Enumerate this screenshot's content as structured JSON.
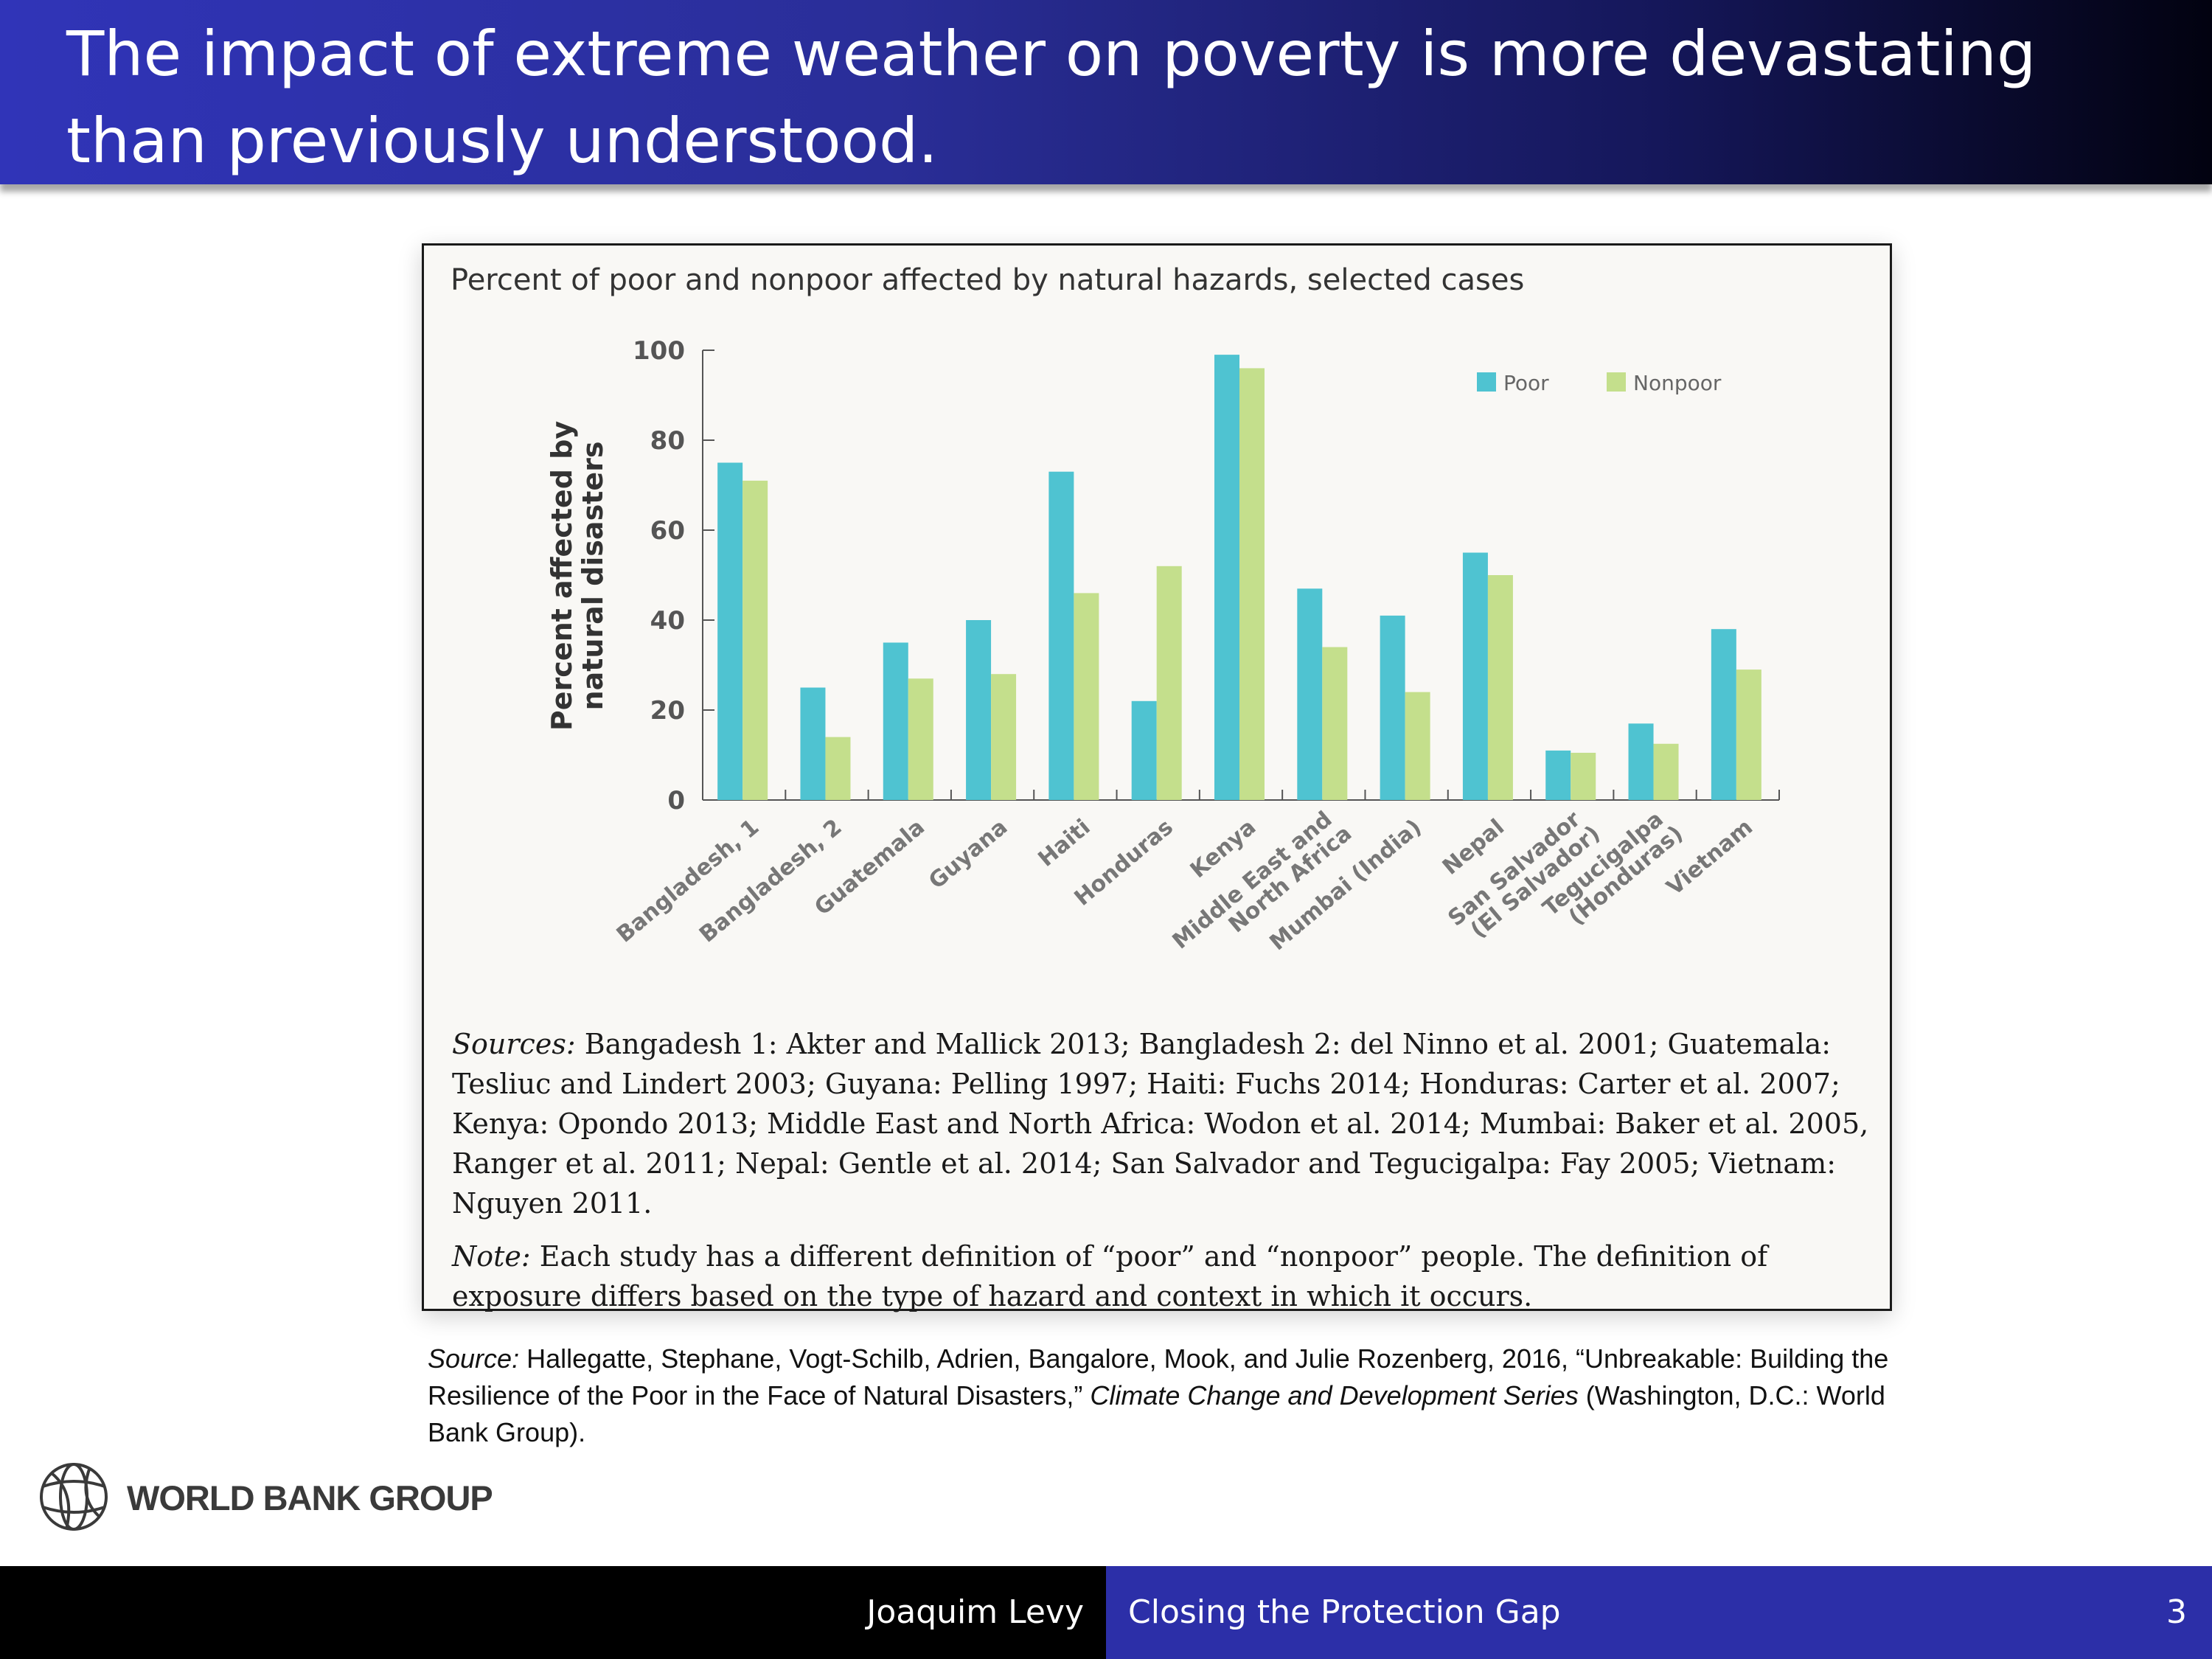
{
  "slide": {
    "title": "The impact of extreme weather on poverty is more devastating than previously understood.",
    "logo_text": "WORLD BANK GROUP",
    "logo_icon": "globe-icon",
    "presenter": "Joaquim Levy",
    "talk_title": "Closing the Protection Gap",
    "page_number": "3",
    "colors": {
      "title_bar": "#2a2e98",
      "footer_left": "#000000",
      "footer_right": "#2c2fa8"
    }
  },
  "figure": {
    "sources_label": "Sources:",
    "sources_text": " Bangadesh 1: Akter and Mallick 2013; Bangladesh 2: del Ninno et al. 2001; Guatemala: Tesliuc and Lindert 2003; Guyana: Pelling 1997; Haiti: Fuchs 2014; Honduras: Carter et al. 2007; Kenya: Opondo 2013; Middle East and North Africa: Wodon et al. 2014; Mumbai: Baker et al. 2005, Ranger et al. 2011; Nepal: Gentle et al. 2014; San Salvador and Tegucigalpa: Fay 2005; Vietnam: Nguyen 2011.",
    "note_label": "Note:",
    "note_text": " Each study has a different definition of “poor” and “nonpoor” people. The definition of exposure differs based on the type of hazard and context in which it occurs."
  },
  "citation": {
    "label": "Source:",
    "text1": " Hallegatte, Stephane, Vogt-Schilb, Adrien, Bangalore, Mook, and Julie Rozenberg, 2016, “Unbreakable: Building the Resilience of the Poor in the Face of Natural Disasters,” ",
    "series": "Climate Change and Development Series",
    "text2": " (Washington, D.C.: World Bank Group)."
  },
  "chart_data": {
    "type": "bar",
    "title": "Percent of poor and nonpoor affected by natural hazards, selected cases",
    "ylabel_line1": "Percent affected by",
    "ylabel_line2": "natural disasters",
    "xlabel": "",
    "ylim": [
      0,
      100
    ],
    "yticks": [
      0,
      20,
      40,
      60,
      80,
      100
    ],
    "grid": false,
    "legend_position": "top-right",
    "categories": [
      [
        "Bangladesh, 1"
      ],
      [
        "Bangladesh, 2"
      ],
      [
        "Guatemala"
      ],
      [
        "Guyana"
      ],
      [
        "Haiti"
      ],
      [
        "Honduras"
      ],
      [
        "Kenya"
      ],
      [
        "Middle East and",
        "North Africa"
      ],
      [
        "Mumbai (India)"
      ],
      [
        "Nepal"
      ],
      [
        "San Salvador",
        "(El Salvador)"
      ],
      [
        "Tegucigalpa",
        "(Honduras)"
      ],
      [
        "Vietnam"
      ]
    ],
    "series": [
      {
        "name": "Poor",
        "color": "#4fc3d1",
        "values": [
          75,
          25,
          35,
          40,
          73,
          22,
          99,
          47,
          41,
          55,
          11,
          17,
          38
        ]
      },
      {
        "name": "Nonpoor",
        "color": "#c4df8c",
        "values": [
          71,
          14,
          27,
          28,
          46,
          52,
          96,
          34,
          24,
          50,
          10.5,
          12.5,
          29
        ]
      }
    ]
  }
}
